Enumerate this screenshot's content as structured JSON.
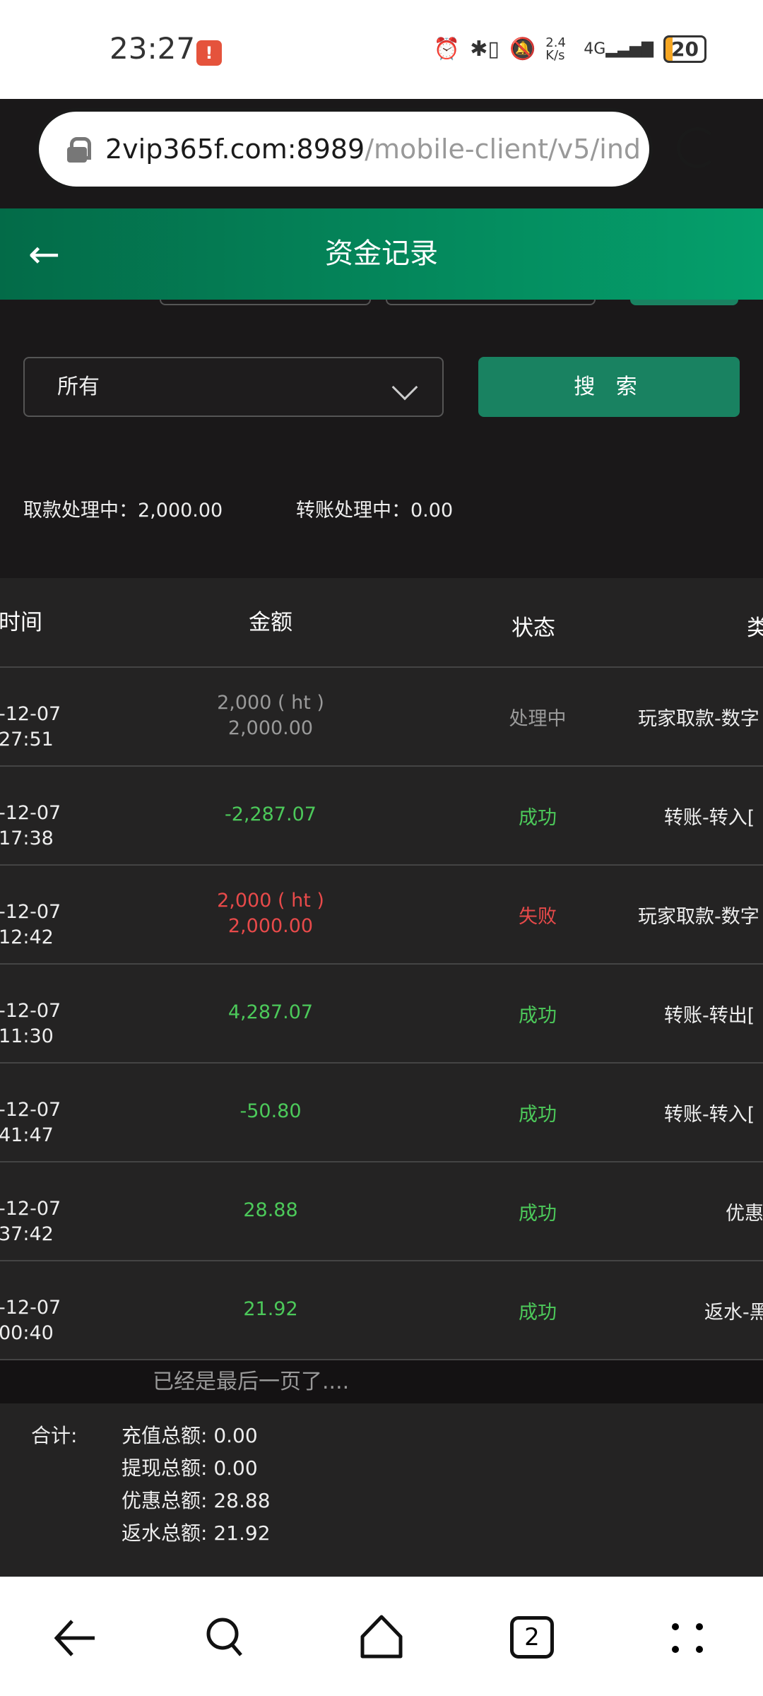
{
  "status_bar": {
    "time": "23:27",
    "notif_badge": "!",
    "net_speed": "2.4 K/s",
    "network": "4G",
    "battery": "20"
  },
  "browser": {
    "url_host": "2vip365f.com:8989",
    "url_path": "/mobile-client/v5/ind",
    "tabs_count": "2"
  },
  "header": {
    "title": "资金记录"
  },
  "filter": {
    "select_value": "所有",
    "search_label": "搜 索"
  },
  "summary": {
    "withdraw_label": "取款处理中：",
    "withdraw_value": "2,000.00",
    "transfer_label": "转账处理中：",
    "transfer_value": "0.00"
  },
  "table": {
    "headers": [
      "时间",
      "金额",
      "状态",
      "类"
    ],
    "rows": [
      {
        "date": "-12-07",
        "time": "27:51",
        "amount": "2,000 ( ht )",
        "amount2": "2,000.00",
        "status": "处理中",
        "type": "玩家取款-数字"
      },
      {
        "date": "-12-07",
        "time": "17:38",
        "amount": "-2,287.07",
        "status": "成功",
        "type": "转账-转入["
      },
      {
        "date": "-12-07",
        "time": "12:42",
        "amount": "2,000 ( ht )",
        "amount2": "2,000.00",
        "status": "失败",
        "type": "玩家取款-数字"
      },
      {
        "date": "-12-07",
        "time": "11:30",
        "amount": "4,287.07",
        "status": "成功",
        "type": "转账-转出["
      },
      {
        "date": "-12-07",
        "time": "41:47",
        "amount": "-50.80",
        "status": "成功",
        "type": "转账-转入["
      },
      {
        "date": "-12-07",
        "time": "37:42",
        "amount": "28.88",
        "status": "成功",
        "type": "优惠"
      },
      {
        "date": "-12-07",
        "time": "00:40",
        "amount": "21.92",
        "status": "成功",
        "type": "返水-黑"
      }
    ]
  },
  "last_page": "已经是最后一页了....",
  "totals": {
    "label": "合计:",
    "items": [
      {
        "label": "充值总额:",
        "value": "0.00"
      },
      {
        "label": "提现总额:",
        "value": "0.00"
      },
      {
        "label": "优惠总额:",
        "value": "28.88"
      },
      {
        "label": "返水总额:",
        "value": "21.92"
      }
    ]
  },
  "colors": {
    "header_start": "#036b48",
    "header_end": "#05a06c",
    "success": "#4cc95a",
    "fail": "#e84a4a",
    "pending": "#9a9a9a",
    "button": "#198261"
  }
}
